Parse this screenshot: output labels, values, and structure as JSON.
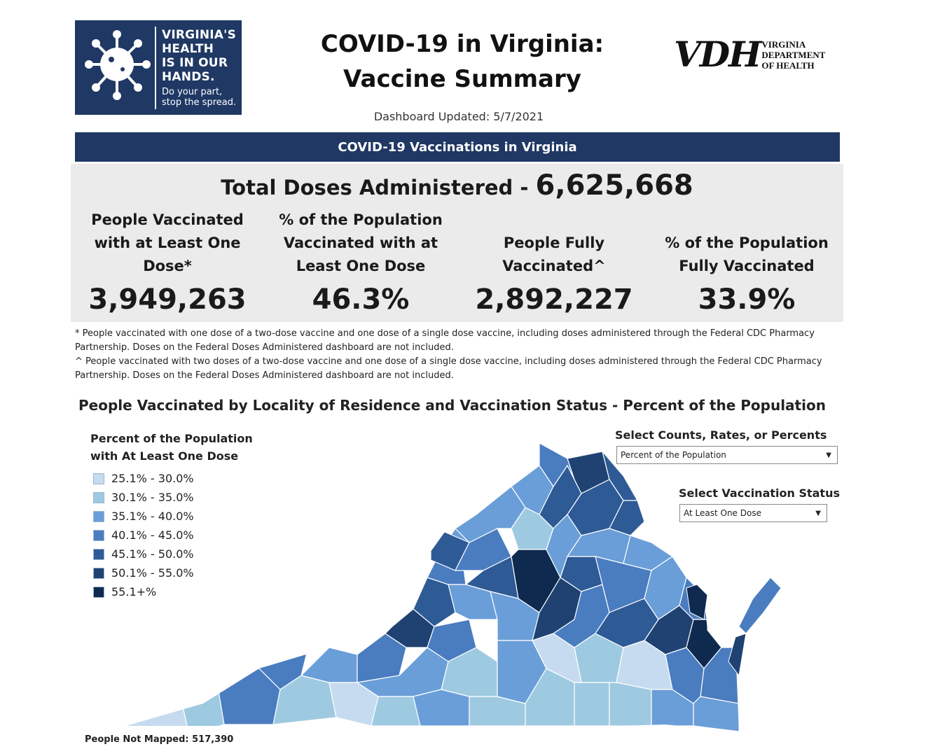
{
  "header": {
    "campaign_logo": {
      "line1": "VIRGINIA'S\nHEALTH\nIS IN OUR\nHANDS.",
      "line2": "Do your part,\nstop the spread."
    },
    "title": "COVID-19 in Virginia:\nVaccine Summary",
    "updated": "Dashboard Updated: 5/7/2021",
    "vdh_logo": {
      "mark": "VDH",
      "text": "VIRGINIA\nDEPARTMENT\nOF HEALTH"
    }
  },
  "banner": {
    "label": "COVID-19 Vaccinations in Virginia"
  },
  "stats": {
    "total_label": "Total Doses Administered - ",
    "total_value": "6,625,668",
    "kpis": [
      {
        "label": "People Vaccinated\nwith at Least One\nDose*",
        "value": "3,949,263"
      },
      {
        "label": "% of the Population\nVaccinated with at\nLeast One Dose",
        "value": "46.3%"
      },
      {
        "label": "People Fully\nVaccinated^",
        "value": "2,892,227"
      },
      {
        "label": "% of the Population\nFully Vaccinated",
        "value": "33.9%"
      }
    ]
  },
  "footnotes": [
    "* People vaccinated with one dose of a two-dose vaccine and one dose of a single dose vaccine, including doses administered through the Federal CDC Pharmacy Partnership.  Doses on the Federal Doses Administered dashboard are not included.",
    "^ People vaccinated with two doses of a two-dose vaccine and one dose of a single dose vaccine, including doses administered through the Federal CDC Pharmacy Partnership.  Doses on the Federal Doses Administered dashboard are not included."
  ],
  "map": {
    "title": "People Vaccinated by Locality of Residence and Vaccination Status - Percent of the Population",
    "legend_title": "Percent of the Population\nwith At Least One Dose",
    "legend": [
      {
        "label": "25.1% - 30.0%",
        "color": "#c6dbef"
      },
      {
        "label": "30.1% - 35.0%",
        "color": "#9ecae1"
      },
      {
        "label": "35.1% - 40.0%",
        "color": "#6a9ed8"
      },
      {
        "label": "40.1% - 45.0%",
        "color": "#4a7cc0"
      },
      {
        "label": "45.1% - 50.0%",
        "color": "#2e5a96"
      },
      {
        "label": "50.1% - 55.0%",
        "color": "#1f4273"
      },
      {
        "label": "55.1+%",
        "color": "#0e2a4f"
      }
    ],
    "not_mapped": "People Not Mapped: 517,390"
  },
  "controls": {
    "metric_label": "Select Counts, Rates, or Percents",
    "metric_value": "Percent of the Population",
    "status_label": "Select Vaccination Status",
    "status_value": "At Least One Dose"
  }
}
